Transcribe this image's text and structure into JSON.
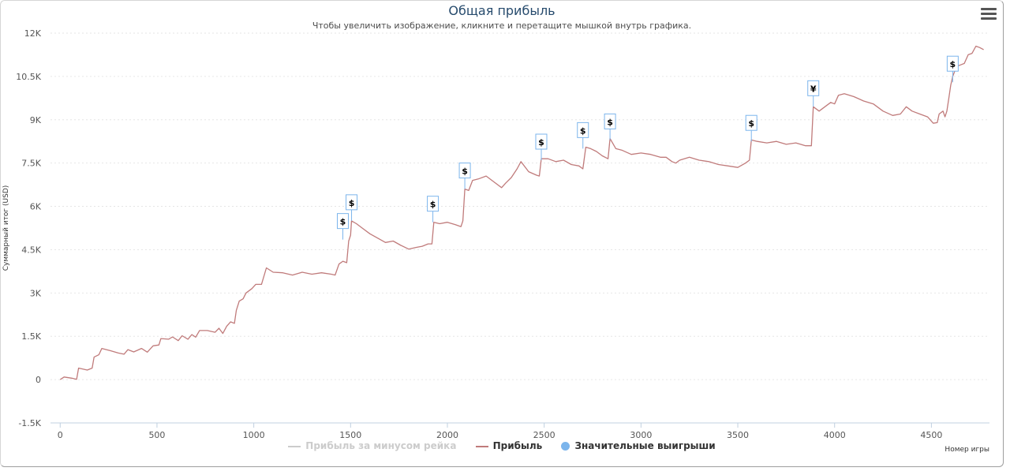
{
  "title": "Общая прибыль",
  "subtitle": "Чтобы увеличить изображение, кликните и перетащите мышкой внутрь графика.",
  "legend": [
    {
      "label": "Прибыль за минусом рейка",
      "color": "#cccccc",
      "text_color": "#cccccc",
      "symbol": "line"
    },
    {
      "label": "Прибыль",
      "color": "#c07b7b",
      "text_color": "#333333",
      "symbol": "line"
    },
    {
      "label": "Значительные выигрыши",
      "color": "#7cb5ec",
      "text_color": "#333333",
      "symbol": "dot"
    }
  ],
  "chart_data": {
    "type": "line",
    "title": "Общая прибыль",
    "subtitle": "Чтобы увеличить изображение, кликните и перетащите мышкой внутрь графика.",
    "xlabel": "Номер игры",
    "ylabel": "Суммарный итог (USD)",
    "xlim": [
      -50,
      4800
    ],
    "ylim": [
      -1500,
      12000
    ],
    "x_ticks": [
      0,
      500,
      1000,
      1500,
      2000,
      2500,
      3000,
      3500,
      4000,
      4500
    ],
    "x_tick_labels": [
      "0",
      "500",
      "1000",
      "1500",
      "2000",
      "2500",
      "3000",
      "3500",
      "4000",
      "4500"
    ],
    "y_ticks": [
      -1500,
      0,
      1500,
      3000,
      4500,
      6000,
      7500,
      9000,
      10500,
      12000
    ],
    "y_tick_labels": [
      "-1.5K",
      "0",
      "1.5K",
      "3K",
      "4.5K",
      "6K",
      "7.5K",
      "9K",
      "10.5K",
      "12K"
    ],
    "grid": true,
    "line_color": "#c07b7b",
    "flag_color": "#7cb5ec",
    "series": [
      {
        "name": "Прибыль",
        "points": [
          [
            0,
            0
          ],
          [
            20,
            90
          ],
          [
            60,
            50
          ],
          [
            85,
            10
          ],
          [
            95,
            400
          ],
          [
            140,
            330
          ],
          [
            165,
            400
          ],
          [
            175,
            780
          ],
          [
            200,
            860
          ],
          [
            215,
            1080
          ],
          [
            260,
            1000
          ],
          [
            300,
            920
          ],
          [
            330,
            880
          ],
          [
            350,
            1040
          ],
          [
            380,
            960
          ],
          [
            420,
            1080
          ],
          [
            450,
            950
          ],
          [
            480,
            1170
          ],
          [
            510,
            1200
          ],
          [
            520,
            1420
          ],
          [
            560,
            1400
          ],
          [
            580,
            1480
          ],
          [
            610,
            1350
          ],
          [
            630,
            1520
          ],
          [
            660,
            1400
          ],
          [
            680,
            1560
          ],
          [
            700,
            1470
          ],
          [
            720,
            1700
          ],
          [
            760,
            1700
          ],
          [
            800,
            1640
          ],
          [
            820,
            1780
          ],
          [
            840,
            1600
          ],
          [
            860,
            1850
          ],
          [
            880,
            2000
          ],
          [
            900,
            1950
          ],
          [
            910,
            2400
          ],
          [
            925,
            2720
          ],
          [
            945,
            2800
          ],
          [
            960,
            3000
          ],
          [
            990,
            3150
          ],
          [
            1010,
            3300
          ],
          [
            1040,
            3300
          ],
          [
            1065,
            3870
          ],
          [
            1100,
            3720
          ],
          [
            1150,
            3700
          ],
          [
            1200,
            3620
          ],
          [
            1250,
            3720
          ],
          [
            1300,
            3650
          ],
          [
            1350,
            3700
          ],
          [
            1400,
            3650
          ],
          [
            1420,
            3620
          ],
          [
            1440,
            4000
          ],
          [
            1460,
            4100
          ],
          [
            1480,
            4050
          ],
          [
            1490,
            4800
          ],
          [
            1500,
            5000
          ],
          [
            1505,
            5500
          ],
          [
            1530,
            5400
          ],
          [
            1560,
            5250
          ],
          [
            1600,
            5050
          ],
          [
            1640,
            4900
          ],
          [
            1680,
            4750
          ],
          [
            1720,
            4800
          ],
          [
            1760,
            4650
          ],
          [
            1800,
            4520
          ],
          [
            1840,
            4580
          ],
          [
            1870,
            4620
          ],
          [
            1900,
            4700
          ],
          [
            1920,
            4700
          ],
          [
            1930,
            5450
          ],
          [
            1960,
            5400
          ],
          [
            2000,
            5450
          ],
          [
            2040,
            5370
          ],
          [
            2070,
            5300
          ],
          [
            2080,
            5500
          ],
          [
            2090,
            6600
          ],
          [
            2110,
            6550
          ],
          [
            2130,
            6900
          ],
          [
            2160,
            6950
          ],
          [
            2200,
            7050
          ],
          [
            2240,
            6850
          ],
          [
            2280,
            6650
          ],
          [
            2300,
            6800
          ],
          [
            2330,
            7000
          ],
          [
            2360,
            7300
          ],
          [
            2380,
            7550
          ],
          [
            2420,
            7200
          ],
          [
            2460,
            7080
          ],
          [
            2475,
            7050
          ],
          [
            2485,
            7650
          ],
          [
            2520,
            7650
          ],
          [
            2560,
            7550
          ],
          [
            2600,
            7600
          ],
          [
            2640,
            7450
          ],
          [
            2680,
            7400
          ],
          [
            2700,
            7300
          ],
          [
            2715,
            8050
          ],
          [
            2740,
            8000
          ],
          [
            2770,
            7900
          ],
          [
            2800,
            7750
          ],
          [
            2830,
            7650
          ],
          [
            2840,
            8350
          ],
          [
            2870,
            8000
          ],
          [
            2900,
            7950
          ],
          [
            2950,
            7800
          ],
          [
            3000,
            7850
          ],
          [
            3050,
            7800
          ],
          [
            3100,
            7700
          ],
          [
            3130,
            7700
          ],
          [
            3160,
            7550
          ],
          [
            3180,
            7500
          ],
          [
            3200,
            7600
          ],
          [
            3250,
            7700
          ],
          [
            3300,
            7600
          ],
          [
            3350,
            7550
          ],
          [
            3400,
            7450
          ],
          [
            3450,
            7400
          ],
          [
            3500,
            7350
          ],
          [
            3540,
            7500
          ],
          [
            3560,
            7600
          ],
          [
            3570,
            8300
          ],
          [
            3600,
            8250
          ],
          [
            3650,
            8200
          ],
          [
            3700,
            8250
          ],
          [
            3750,
            8150
          ],
          [
            3800,
            8200
          ],
          [
            3850,
            8100
          ],
          [
            3880,
            8100
          ],
          [
            3890,
            9450
          ],
          [
            3920,
            9300
          ],
          [
            3950,
            9450
          ],
          [
            3980,
            9600
          ],
          [
            4000,
            9550
          ],
          [
            4020,
            9850
          ],
          [
            4050,
            9900
          ],
          [
            4100,
            9800
          ],
          [
            4150,
            9650
          ],
          [
            4200,
            9550
          ],
          [
            4250,
            9300
          ],
          [
            4300,
            9150
          ],
          [
            4340,
            9200
          ],
          [
            4370,
            9450
          ],
          [
            4400,
            9300
          ],
          [
            4440,
            9200
          ],
          [
            4480,
            9100
          ],
          [
            4510,
            8880
          ],
          [
            4530,
            8900
          ],
          [
            4540,
            9200
          ],
          [
            4560,
            9300
          ],
          [
            4570,
            9100
          ],
          [
            4580,
            9300
          ],
          [
            4590,
            9750
          ],
          [
            4600,
            10200
          ],
          [
            4610,
            10500
          ],
          [
            4630,
            10850
          ],
          [
            4650,
            10900
          ],
          [
            4670,
            10950
          ],
          [
            4690,
            11250
          ],
          [
            4710,
            11300
          ],
          [
            4730,
            11550
          ],
          [
            4750,
            11500
          ],
          [
            4770,
            11430
          ]
        ]
      }
    ],
    "flags": [
      {
        "x": 1460,
        "y": 4850,
        "label": "$"
      },
      {
        "x": 1505,
        "y": 5500,
        "label": "$"
      },
      {
        "x": 1925,
        "y": 5450,
        "label": "$"
      },
      {
        "x": 2090,
        "y": 6600,
        "label": "$"
      },
      {
        "x": 2485,
        "y": 7600,
        "label": "$"
      },
      {
        "x": 2700,
        "y": 8000,
        "label": "$"
      },
      {
        "x": 2840,
        "y": 8300,
        "label": "$"
      },
      {
        "x": 3570,
        "y": 8250,
        "label": "$"
      },
      {
        "x": 3890,
        "y": 9450,
        "label": "¥"
      },
      {
        "x": 4610,
        "y": 10300,
        "label": "$"
      }
    ]
  }
}
